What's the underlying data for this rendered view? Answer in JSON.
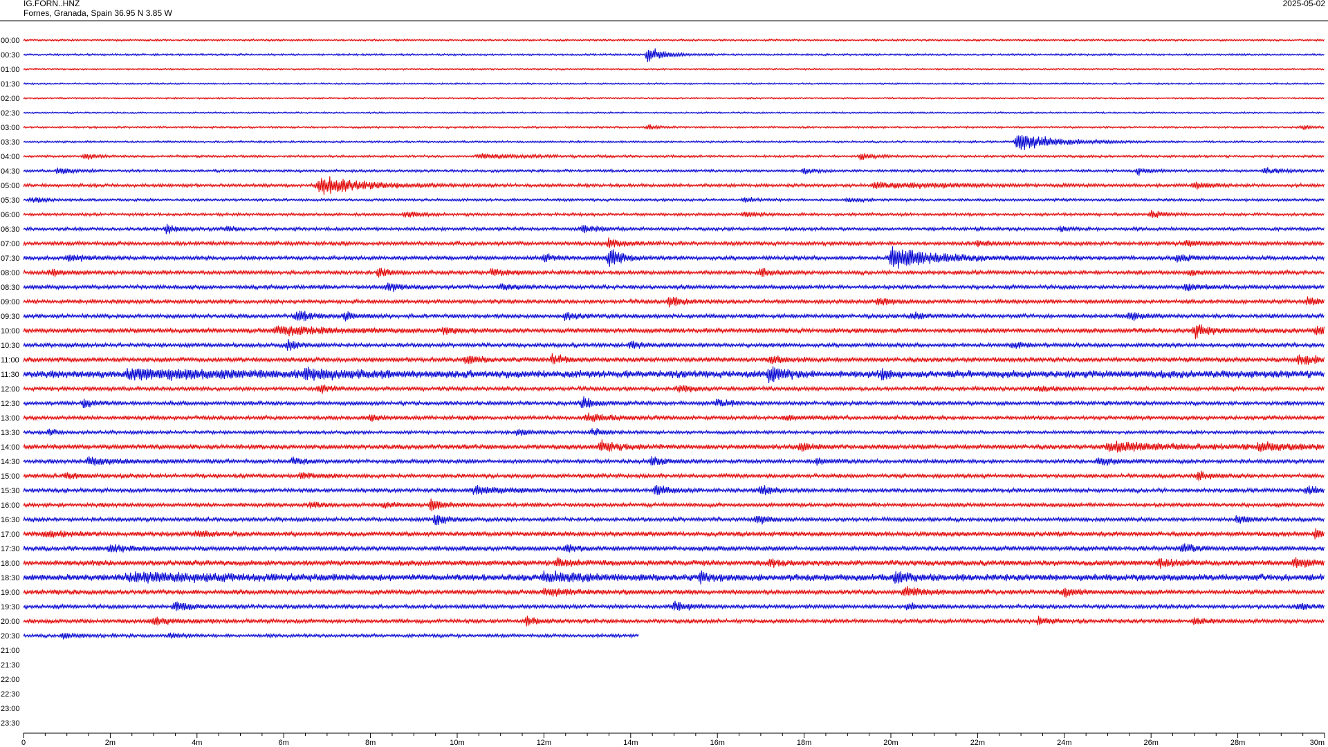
{
  "header": {
    "station": "IG.FORN..HNZ",
    "location": "Fornes, Granada, Spain  36.95 N 3.85 W",
    "date": "2025-05-02"
  },
  "colors": {
    "even_trace": "#e00000",
    "odd_trace": "#0000d0",
    "axis": "#000000",
    "background": "#ffffff"
  },
  "chart_data": {
    "type": "line",
    "title": "IG.FORN..HNZ",
    "xlabel": "",
    "ylabel": "",
    "x_unit": "minutes",
    "xlim": [
      0,
      30
    ],
    "grid": false,
    "legend": "none",
    "x_ticks": [
      "0",
      "2m",
      "4m",
      "6m",
      "8m",
      "10m",
      "12m",
      "14m",
      "16m",
      "18m",
      "20m",
      "22m",
      "24m",
      "26m",
      "28m",
      "30m"
    ],
    "x_tick_values": [
      0,
      2,
      4,
      6,
      8,
      10,
      12,
      14,
      16,
      18,
      20,
      22,
      24,
      26,
      28,
      30
    ],
    "rows": [
      {
        "time": "00:00",
        "color": "red",
        "end_minute": 30,
        "noise": 0.15,
        "events": []
      },
      {
        "time": "00:30",
        "color": "blue",
        "end_minute": 30,
        "noise": 0.15,
        "events": [
          {
            "t": 14.4,
            "amp": 1.8,
            "dur": 0.6
          }
        ]
      },
      {
        "time": "01:00",
        "color": "red",
        "end_minute": 30,
        "noise": 0.12,
        "events": []
      },
      {
        "time": "01:30",
        "color": "blue",
        "end_minute": 30,
        "noise": 0.12,
        "events": []
      },
      {
        "time": "02:00",
        "color": "red",
        "end_minute": 30,
        "noise": 0.12,
        "events": []
      },
      {
        "time": "02:30",
        "color": "blue",
        "end_minute": 30,
        "noise": 0.12,
        "events": []
      },
      {
        "time": "03:00",
        "color": "red",
        "end_minute": 30,
        "noise": 0.15,
        "events": [
          {
            "t": 14.4,
            "amp": 0.6,
            "dur": 0.4
          },
          {
            "t": 29.5,
            "amp": 0.5,
            "dur": 0.3
          }
        ]
      },
      {
        "time": "03:30",
        "color": "blue",
        "end_minute": 30,
        "noise": 0.15,
        "events": [
          {
            "t": 22.9,
            "amp": 2.0,
            "dur": 1.5
          }
        ]
      },
      {
        "time": "04:00",
        "color": "red",
        "end_minute": 30,
        "noise": 0.18,
        "events": [
          {
            "t": 1.4,
            "amp": 0.7,
            "dur": 0.4
          },
          {
            "t": 10.5,
            "amp": 0.5,
            "dur": 1.8
          },
          {
            "t": 19.3,
            "amp": 0.8,
            "dur": 0.5
          }
        ]
      },
      {
        "time": "04:30",
        "color": "blue",
        "end_minute": 30,
        "noise": 0.2,
        "events": [
          {
            "t": 0.8,
            "amp": 0.8,
            "dur": 0.5
          },
          {
            "t": 18.0,
            "amp": 0.8,
            "dur": 0.4
          },
          {
            "t": 25.7,
            "amp": 0.7,
            "dur": 0.4
          },
          {
            "t": 28.6,
            "amp": 0.6,
            "dur": 0.8
          }
        ]
      },
      {
        "time": "05:00",
        "color": "red",
        "end_minute": 30,
        "noise": 0.25,
        "events": [
          {
            "t": 6.8,
            "amp": 2.0,
            "dur": 1.6
          },
          {
            "t": 19.6,
            "amp": 0.6,
            "dur": 3.0
          },
          {
            "t": 27.0,
            "amp": 0.9,
            "dur": 0.5
          }
        ]
      },
      {
        "time": "05:30",
        "color": "blue",
        "end_minute": 30,
        "noise": 0.2,
        "events": [
          {
            "t": 0.2,
            "amp": 0.6,
            "dur": 0.5
          },
          {
            "t": 16.6,
            "amp": 0.6,
            "dur": 0.4
          },
          {
            "t": 19.0,
            "amp": 0.5,
            "dur": 0.4
          }
        ]
      },
      {
        "time": "06:00",
        "color": "red",
        "end_minute": 30,
        "noise": 0.22,
        "events": [
          {
            "t": 8.8,
            "amp": 0.7,
            "dur": 0.6
          },
          {
            "t": 16.6,
            "amp": 0.6,
            "dur": 0.6
          },
          {
            "t": 26.0,
            "amp": 0.8,
            "dur": 0.5
          }
        ]
      },
      {
        "time": "06:30",
        "color": "blue",
        "end_minute": 30,
        "noise": 0.25,
        "events": [
          {
            "t": 3.3,
            "amp": 0.8,
            "dur": 0.5
          },
          {
            "t": 4.7,
            "amp": 0.6,
            "dur": 0.3
          },
          {
            "t": 12.9,
            "amp": 0.9,
            "dur": 0.5
          },
          {
            "t": 23.9,
            "amp": 0.5,
            "dur": 0.4
          }
        ]
      },
      {
        "time": "07:00",
        "color": "red",
        "end_minute": 30,
        "noise": 0.3,
        "events": [
          {
            "t": 13.5,
            "amp": 1.0,
            "dur": 0.5
          },
          {
            "t": 22.0,
            "amp": 0.6,
            "dur": 0.6
          },
          {
            "t": 26.8,
            "amp": 0.6,
            "dur": 0.6
          }
        ]
      },
      {
        "time": "07:30",
        "color": "blue",
        "end_minute": 30,
        "noise": 0.3,
        "events": [
          {
            "t": 1.0,
            "amp": 0.8,
            "dur": 0.6
          },
          {
            "t": 12.0,
            "amp": 0.8,
            "dur": 0.5
          },
          {
            "t": 13.5,
            "amp": 2.2,
            "dur": 0.5
          },
          {
            "t": 20.0,
            "amp": 2.5,
            "dur": 1.6
          },
          {
            "t": 26.6,
            "amp": 0.8,
            "dur": 0.6
          }
        ]
      },
      {
        "time": "08:00",
        "color": "red",
        "end_minute": 30,
        "noise": 0.3,
        "events": [
          {
            "t": 0.6,
            "amp": 0.7,
            "dur": 0.6
          },
          {
            "t": 8.2,
            "amp": 1.0,
            "dur": 0.4
          },
          {
            "t": 10.8,
            "amp": 0.6,
            "dur": 0.8
          },
          {
            "t": 17.0,
            "amp": 0.9,
            "dur": 0.4
          },
          {
            "t": 26.9,
            "amp": 0.7,
            "dur": 0.4
          }
        ]
      },
      {
        "time": "08:30",
        "color": "blue",
        "end_minute": 30,
        "noise": 0.3,
        "events": [
          {
            "t": 8.4,
            "amp": 1.0,
            "dur": 0.5
          },
          {
            "t": 11.0,
            "amp": 0.8,
            "dur": 0.5
          },
          {
            "t": 26.8,
            "amp": 0.8,
            "dur": 0.5
          }
        ]
      },
      {
        "time": "09:00",
        "color": "red",
        "end_minute": 30,
        "noise": 0.3,
        "events": [
          {
            "t": 14.9,
            "amp": 1.1,
            "dur": 0.5
          },
          {
            "t": 19.7,
            "amp": 1.0,
            "dur": 0.5
          },
          {
            "t": 29.6,
            "amp": 0.7,
            "dur": 0.8
          }
        ]
      },
      {
        "time": "09:30",
        "color": "blue",
        "end_minute": 30,
        "noise": 0.3,
        "events": [
          {
            "t": 6.3,
            "amp": 1.3,
            "dur": 0.5
          },
          {
            "t": 7.4,
            "amp": 1.0,
            "dur": 0.4
          },
          {
            "t": 12.5,
            "amp": 0.8,
            "dur": 0.4
          },
          {
            "t": 20.5,
            "amp": 0.8,
            "dur": 0.4
          },
          {
            "t": 25.5,
            "amp": 0.8,
            "dur": 0.5
          }
        ]
      },
      {
        "time": "10:00",
        "color": "red",
        "end_minute": 30,
        "noise": 0.35,
        "events": [
          {
            "t": 5.8,
            "amp": 1.0,
            "dur": 2.0
          },
          {
            "t": 9.7,
            "amp": 0.7,
            "dur": 0.5
          },
          {
            "t": 27.0,
            "amp": 1.5,
            "dur": 0.5
          },
          {
            "t": 29.8,
            "amp": 0.8,
            "dur": 0.6
          }
        ]
      },
      {
        "time": "10:30",
        "color": "blue",
        "end_minute": 30,
        "noise": 0.3,
        "events": [
          {
            "t": 6.1,
            "amp": 1.0,
            "dur": 0.4
          },
          {
            "t": 14.0,
            "amp": 0.9,
            "dur": 0.4
          },
          {
            "t": 22.8,
            "amp": 0.7,
            "dur": 0.5
          }
        ]
      },
      {
        "time": "11:00",
        "color": "red",
        "end_minute": 30,
        "noise": 0.35,
        "events": [
          {
            "t": 10.2,
            "amp": 0.8,
            "dur": 0.6
          },
          {
            "t": 12.2,
            "amp": 0.9,
            "dur": 0.5
          },
          {
            "t": 17.2,
            "amp": 0.8,
            "dur": 0.5
          },
          {
            "t": 29.4,
            "amp": 1.0,
            "dur": 1.0
          }
        ]
      },
      {
        "time": "11:30",
        "color": "blue",
        "end_minute": 30,
        "noise": 0.55,
        "events": [
          {
            "t": 2.4,
            "amp": 0.9,
            "dur": 4.0
          },
          {
            "t": 6.5,
            "amp": 0.8,
            "dur": 1.5
          },
          {
            "t": 17.2,
            "amp": 1.6,
            "dur": 0.5
          },
          {
            "t": 19.8,
            "amp": 0.8,
            "dur": 0.4
          }
        ]
      },
      {
        "time": "12:00",
        "color": "red",
        "end_minute": 30,
        "noise": 0.3,
        "events": [
          {
            "t": 6.8,
            "amp": 1.0,
            "dur": 0.4
          },
          {
            "t": 15.1,
            "amp": 0.8,
            "dur": 0.5
          },
          {
            "t": 23.4,
            "amp": 0.8,
            "dur": 0.4
          }
        ]
      },
      {
        "time": "12:30",
        "color": "blue",
        "end_minute": 30,
        "noise": 0.3,
        "events": [
          {
            "t": 1.4,
            "amp": 1.0,
            "dur": 0.4
          },
          {
            "t": 12.9,
            "amp": 1.3,
            "dur": 0.4
          },
          {
            "t": 16.0,
            "amp": 0.8,
            "dur": 0.5
          }
        ]
      },
      {
        "time": "13:00",
        "color": "red",
        "end_minute": 30,
        "noise": 0.3,
        "events": [
          {
            "t": 8.0,
            "amp": 0.7,
            "dur": 0.4
          },
          {
            "t": 13.0,
            "amp": 0.8,
            "dur": 1.0
          },
          {
            "t": 17.6,
            "amp": 0.6,
            "dur": 0.5
          }
        ]
      },
      {
        "time": "13:30",
        "color": "blue",
        "end_minute": 30,
        "noise": 0.25,
        "events": [
          {
            "t": 0.6,
            "amp": 0.6,
            "dur": 0.3
          },
          {
            "t": 11.4,
            "amp": 0.8,
            "dur": 0.4
          },
          {
            "t": 13.1,
            "amp": 0.8,
            "dur": 0.4
          }
        ]
      },
      {
        "time": "14:00",
        "color": "red",
        "end_minute": 30,
        "noise": 0.35,
        "events": [
          {
            "t": 13.3,
            "amp": 1.4,
            "dur": 0.6
          },
          {
            "t": 17.9,
            "amp": 1.0,
            "dur": 0.4
          },
          {
            "t": 25.0,
            "amp": 1.0,
            "dur": 2.5
          },
          {
            "t": 28.5,
            "amp": 0.8,
            "dur": 1.5
          }
        ]
      },
      {
        "time": "14:30",
        "color": "blue",
        "end_minute": 30,
        "noise": 0.3,
        "events": [
          {
            "t": 1.5,
            "amp": 0.8,
            "dur": 1.2
          },
          {
            "t": 6.2,
            "amp": 1.0,
            "dur": 0.4
          },
          {
            "t": 14.5,
            "amp": 1.3,
            "dur": 0.5
          },
          {
            "t": 18.3,
            "amp": 0.8,
            "dur": 0.4
          },
          {
            "t": 24.8,
            "amp": 1.0,
            "dur": 0.6
          }
        ]
      },
      {
        "time": "15:00",
        "color": "red",
        "end_minute": 30,
        "noise": 0.3,
        "events": [
          {
            "t": 1.0,
            "amp": 0.7,
            "dur": 0.4
          },
          {
            "t": 6.4,
            "amp": 0.6,
            "dur": 0.6
          },
          {
            "t": 27.1,
            "amp": 1.0,
            "dur": 0.4
          }
        ]
      },
      {
        "time": "15:30",
        "color": "blue",
        "end_minute": 30,
        "noise": 0.3,
        "events": [
          {
            "t": 10.4,
            "amp": 0.9,
            "dur": 1.2
          },
          {
            "t": 14.6,
            "amp": 1.5,
            "dur": 0.4
          },
          {
            "t": 17.0,
            "amp": 1.0,
            "dur": 0.5
          },
          {
            "t": 29.6,
            "amp": 1.1,
            "dur": 0.4
          }
        ]
      },
      {
        "time": "16:00",
        "color": "red",
        "end_minute": 30,
        "noise": 0.3,
        "events": [
          {
            "t": 8.3,
            "amp": 0.8,
            "dur": 0.4
          },
          {
            "t": 9.4,
            "amp": 1.2,
            "dur": 0.5
          },
          {
            "t": 6.6,
            "amp": 0.6,
            "dur": 0.4
          }
        ]
      },
      {
        "time": "16:30",
        "color": "blue",
        "end_minute": 30,
        "noise": 0.3,
        "events": [
          {
            "t": 9.5,
            "amp": 1.3,
            "dur": 0.4
          },
          {
            "t": 16.9,
            "amp": 1.1,
            "dur": 0.4
          },
          {
            "t": 28.0,
            "amp": 1.0,
            "dur": 0.4
          }
        ]
      },
      {
        "time": "17:00",
        "color": "red",
        "end_minute": 30,
        "noise": 0.35,
        "events": [
          {
            "t": 0.5,
            "amp": 0.8,
            "dur": 0.6
          },
          {
            "t": 4.0,
            "amp": 0.7,
            "dur": 0.5
          },
          {
            "t": 29.8,
            "amp": 1.0,
            "dur": 0.5
          }
        ]
      },
      {
        "time": "17:30",
        "color": "blue",
        "end_minute": 30,
        "noise": 0.35,
        "events": [
          {
            "t": 2.0,
            "amp": 0.8,
            "dur": 0.5
          },
          {
            "t": 12.5,
            "amp": 0.7,
            "dur": 0.5
          },
          {
            "t": 26.7,
            "amp": 0.8,
            "dur": 0.5
          }
        ]
      },
      {
        "time": "18:00",
        "color": "red",
        "end_minute": 30,
        "noise": 0.4,
        "events": [
          {
            "t": 12.3,
            "amp": 1.0,
            "dur": 0.5
          },
          {
            "t": 17.2,
            "amp": 0.8,
            "dur": 0.5
          },
          {
            "t": 26.2,
            "amp": 0.9,
            "dur": 0.6
          },
          {
            "t": 29.3,
            "amp": 0.8,
            "dur": 1.0
          }
        ]
      },
      {
        "time": "18:30",
        "color": "blue",
        "end_minute": 30,
        "noise": 0.5,
        "events": [
          {
            "t": 2.4,
            "amp": 0.8,
            "dur": 3.5
          },
          {
            "t": 12.0,
            "amp": 0.9,
            "dur": 1.5
          },
          {
            "t": 15.6,
            "amp": 1.0,
            "dur": 0.4
          },
          {
            "t": 20.1,
            "amp": 1.1,
            "dur": 0.6
          }
        ]
      },
      {
        "time": "19:00",
        "color": "red",
        "end_minute": 30,
        "noise": 0.35,
        "events": [
          {
            "t": 12.0,
            "amp": 0.8,
            "dur": 1.0
          },
          {
            "t": 20.3,
            "amp": 1.0,
            "dur": 0.8
          },
          {
            "t": 24.0,
            "amp": 0.8,
            "dur": 0.5
          }
        ]
      },
      {
        "time": "19:30",
        "color": "blue",
        "end_minute": 30,
        "noise": 0.3,
        "events": [
          {
            "t": 3.5,
            "amp": 1.0,
            "dur": 0.6
          },
          {
            "t": 15.0,
            "amp": 1.2,
            "dur": 0.5
          },
          {
            "t": 20.4,
            "amp": 0.8,
            "dur": 0.4
          },
          {
            "t": 29.4,
            "amp": 0.7,
            "dur": 0.5
          }
        ]
      },
      {
        "time": "20:00",
        "color": "red",
        "end_minute": 30,
        "noise": 0.3,
        "events": [
          {
            "t": 3.0,
            "amp": 0.8,
            "dur": 0.8
          },
          {
            "t": 11.6,
            "amp": 0.9,
            "dur": 0.4
          },
          {
            "t": 23.4,
            "amp": 0.9,
            "dur": 0.4
          },
          {
            "t": 27.0,
            "amp": 0.6,
            "dur": 0.5
          }
        ]
      },
      {
        "time": "20:30",
        "color": "blue",
        "end_minute": 14.2,
        "noise": 0.25,
        "events": [
          {
            "t": 0.9,
            "amp": 0.6,
            "dur": 0.5
          },
          {
            "t": 3.4,
            "amp": 0.6,
            "dur": 0.4
          }
        ]
      },
      {
        "time": "21:00",
        "color": "red",
        "end_minute": 0,
        "noise": 0,
        "events": []
      },
      {
        "time": "21:30",
        "color": "blue",
        "end_minute": 0,
        "noise": 0,
        "events": []
      },
      {
        "time": "22:00",
        "color": "red",
        "end_minute": 0,
        "noise": 0,
        "events": []
      },
      {
        "time": "22:30",
        "color": "blue",
        "end_minute": 0,
        "noise": 0,
        "events": []
      },
      {
        "time": "23:00",
        "color": "red",
        "end_minute": 0,
        "noise": 0,
        "events": []
      },
      {
        "time": "23:30",
        "color": "blue",
        "end_minute": 0,
        "noise": 0,
        "events": []
      }
    ]
  }
}
